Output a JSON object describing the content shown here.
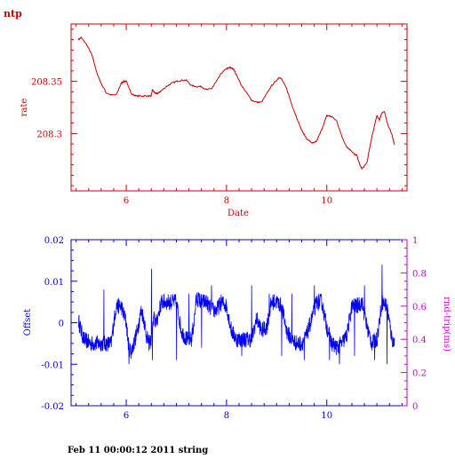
{
  "header": {
    "label": "ntp"
  },
  "footer": {
    "text": "Feb 11 00:00:12 2011 string"
  },
  "colors": {
    "top": "#cc0000",
    "bottom": "#0000ff",
    "right_axis": "#cc00cc"
  },
  "chart_data": [
    {
      "type": "line",
      "title": "",
      "xlabel": "Date",
      "ylabel": "rate",
      "xlim": [
        4.9,
        11.6
      ],
      "ylim": [
        208.245,
        208.405
      ],
      "x_ticks": [
        6,
        8,
        10
      ],
      "x_tick_labels": [
        "6",
        "8",
        "10"
      ],
      "y_ticks": [
        208.3,
        208.35
      ],
      "y_tick_labels": [
        "208.3",
        "208.35"
      ],
      "grid": false,
      "series": [
        {
          "x": [
            5.05,
            5.1,
            5.2,
            5.3,
            5.35,
            5.4,
            5.5,
            5.6,
            5.7,
            5.8,
            5.9,
            5.95,
            6.0,
            6.05,
            6.1,
            6.2,
            6.3,
            6.4,
            6.5,
            6.52,
            6.55,
            6.6,
            6.65,
            6.7,
            6.8,
            6.9,
            7.0,
            7.1,
            7.2,
            7.3,
            7.4,
            7.5,
            7.6,
            7.7,
            7.8,
            7.9,
            8.0,
            8.05,
            8.1,
            8.15,
            8.2,
            8.3,
            8.4,
            8.5,
            8.6,
            8.7,
            8.8,
            8.9,
            9.0,
            9.05,
            9.1,
            9.2,
            9.3,
            9.4,
            9.5,
            9.6,
            9.7,
            9.75,
            9.8,
            9.9,
            10.0,
            10.05,
            10.1,
            10.2,
            10.3,
            10.4,
            10.5,
            10.55,
            10.6,
            10.65,
            10.7,
            10.8,
            10.9,
            11.0,
            11.05,
            11.1,
            11.15,
            11.2,
            11.3,
            11.35
          ],
          "y": [
            208.39,
            208.392,
            208.386,
            208.377,
            208.37,
            208.36,
            208.348,
            208.339,
            208.337,
            208.337,
            208.348,
            208.35,
            208.35,
            208.345,
            208.338,
            208.336,
            208.336,
            208.336,
            208.336,
            208.342,
            208.34,
            208.338,
            208.339,
            208.341,
            208.345,
            208.348,
            208.35,
            208.351,
            208.351,
            208.346,
            208.345,
            208.345,
            208.342,
            208.343,
            208.35,
            208.358,
            208.362,
            208.363,
            208.363,
            208.361,
            208.356,
            208.346,
            208.339,
            208.332,
            208.33,
            208.33,
            208.338,
            208.346,
            208.351,
            208.354,
            208.352,
            208.343,
            208.328,
            208.315,
            208.303,
            208.295,
            208.291,
            208.291,
            208.293,
            208.304,
            208.317,
            208.317,
            208.316,
            208.312,
            208.297,
            208.287,
            208.283,
            208.28,
            208.279,
            208.271,
            208.266,
            208.272,
            208.297,
            208.317,
            208.313,
            208.32,
            208.321,
            208.311,
            208.299,
            208.289
          ]
        }
      ]
    },
    {
      "type": "line",
      "title": "",
      "xlabel": "",
      "ylabel": "Offset",
      "y2label": "rnd-trip(ms)",
      "xlim": [
        4.9,
        11.6
      ],
      "ylim": [
        -0.02,
        0.02
      ],
      "y2lim": [
        0,
        1
      ],
      "x_ticks": [
        6,
        8,
        10
      ],
      "x_tick_labels": [
        "6",
        "8",
        "10"
      ],
      "y_ticks": [
        -0.02,
        -0.01,
        0,
        0.01,
        0.02
      ],
      "y_tick_labels": [
        "-0.02",
        "-0.01",
        "0",
        "0.01",
        "0.02"
      ],
      "y2_ticks": [
        0,
        0.2,
        0.4,
        0.6,
        0.8,
        1
      ],
      "y2_tick_labels": [
        "0",
        "0.2",
        "0.4",
        "0.6",
        "0.8",
        "1"
      ],
      "grid": false,
      "series": [
        {
          "x": [
            5.05,
            5.1,
            5.15,
            5.3,
            5.5,
            5.7,
            5.75,
            5.8,
            5.9,
            6.0,
            6.05,
            6.1,
            6.2,
            6.3,
            6.35,
            6.4,
            6.45,
            6.5,
            6.55,
            6.6,
            6.7,
            6.8,
            6.9,
            7.0,
            7.1,
            7.2,
            7.3,
            7.35,
            7.4,
            7.5,
            7.6,
            7.7,
            7.8,
            7.9,
            8.0,
            8.1,
            8.2,
            8.3,
            8.4,
            8.5,
            8.6,
            8.7,
            8.8,
            8.9,
            9.0,
            9.1,
            9.2,
            9.3,
            9.4,
            9.5,
            9.6,
            9.7,
            9.8,
            9.9,
            10.0,
            10.1,
            10.2,
            10.3,
            10.4,
            10.5,
            10.6,
            10.7,
            10.8,
            10.9,
            11.0,
            11.1,
            11.2,
            11.3,
            11.35
          ],
          "y": [
            0.0005,
            -0.002,
            -0.004,
            -0.005,
            -0.005,
            -0.005,
            0.0,
            0.004,
            0.004,
            0.0,
            -0.006,
            -0.007,
            -0.003,
            0.003,
            0.001,
            -0.003,
            -0.005,
            -0.004,
            0.001,
            0.0,
            0.005,
            0.005,
            0.005,
            0.005,
            -0.002,
            -0.004,
            -0.004,
            0.0,
            0.006,
            0.005,
            0.005,
            0.003,
            0.003,
            0.005,
            0.004,
            -0.002,
            -0.004,
            -0.004,
            -0.004,
            -0.004,
            0.001,
            -0.002,
            -0.001,
            0.005,
            0.005,
            0.004,
            -0.002,
            -0.004,
            -0.005,
            -0.005,
            -0.003,
            0.001,
            0.005,
            0.005,
            -0.001,
            -0.005,
            -0.006,
            -0.005,
            -0.003,
            0.004,
            0.004,
            0.005,
            -0.001,
            -0.005,
            -0.004,
            0.005,
            0.004,
            -0.004,
            -0.005
          ],
          "noise": 0.002,
          "spikes": [
            [
              5.55,
              0.008
            ],
            [
              6.05,
              -0.01
            ],
            [
              6.5,
              0.013
            ],
            [
              6.52,
              -0.009
            ],
            [
              7.0,
              -0.009
            ],
            [
              7.25,
              0.007
            ],
            [
              7.5,
              -0.006
            ],
            [
              7.7,
              0.009
            ],
            [
              8.3,
              -0.008
            ],
            [
              8.5,
              0.009
            ],
            [
              8.85,
              0.007
            ],
            [
              9.1,
              -0.008
            ],
            [
              9.3,
              0.007
            ],
            [
              9.55,
              -0.009
            ],
            [
              9.75,
              0.009
            ],
            [
              10.05,
              -0.009
            ],
            [
              10.25,
              -0.01
            ],
            [
              10.55,
              -0.008
            ],
            [
              10.75,
              0.009
            ],
            [
              10.95,
              -0.009
            ],
            [
              11.1,
              0.014
            ],
            [
              11.2,
              -0.01
            ]
          ]
        }
      ]
    }
  ]
}
